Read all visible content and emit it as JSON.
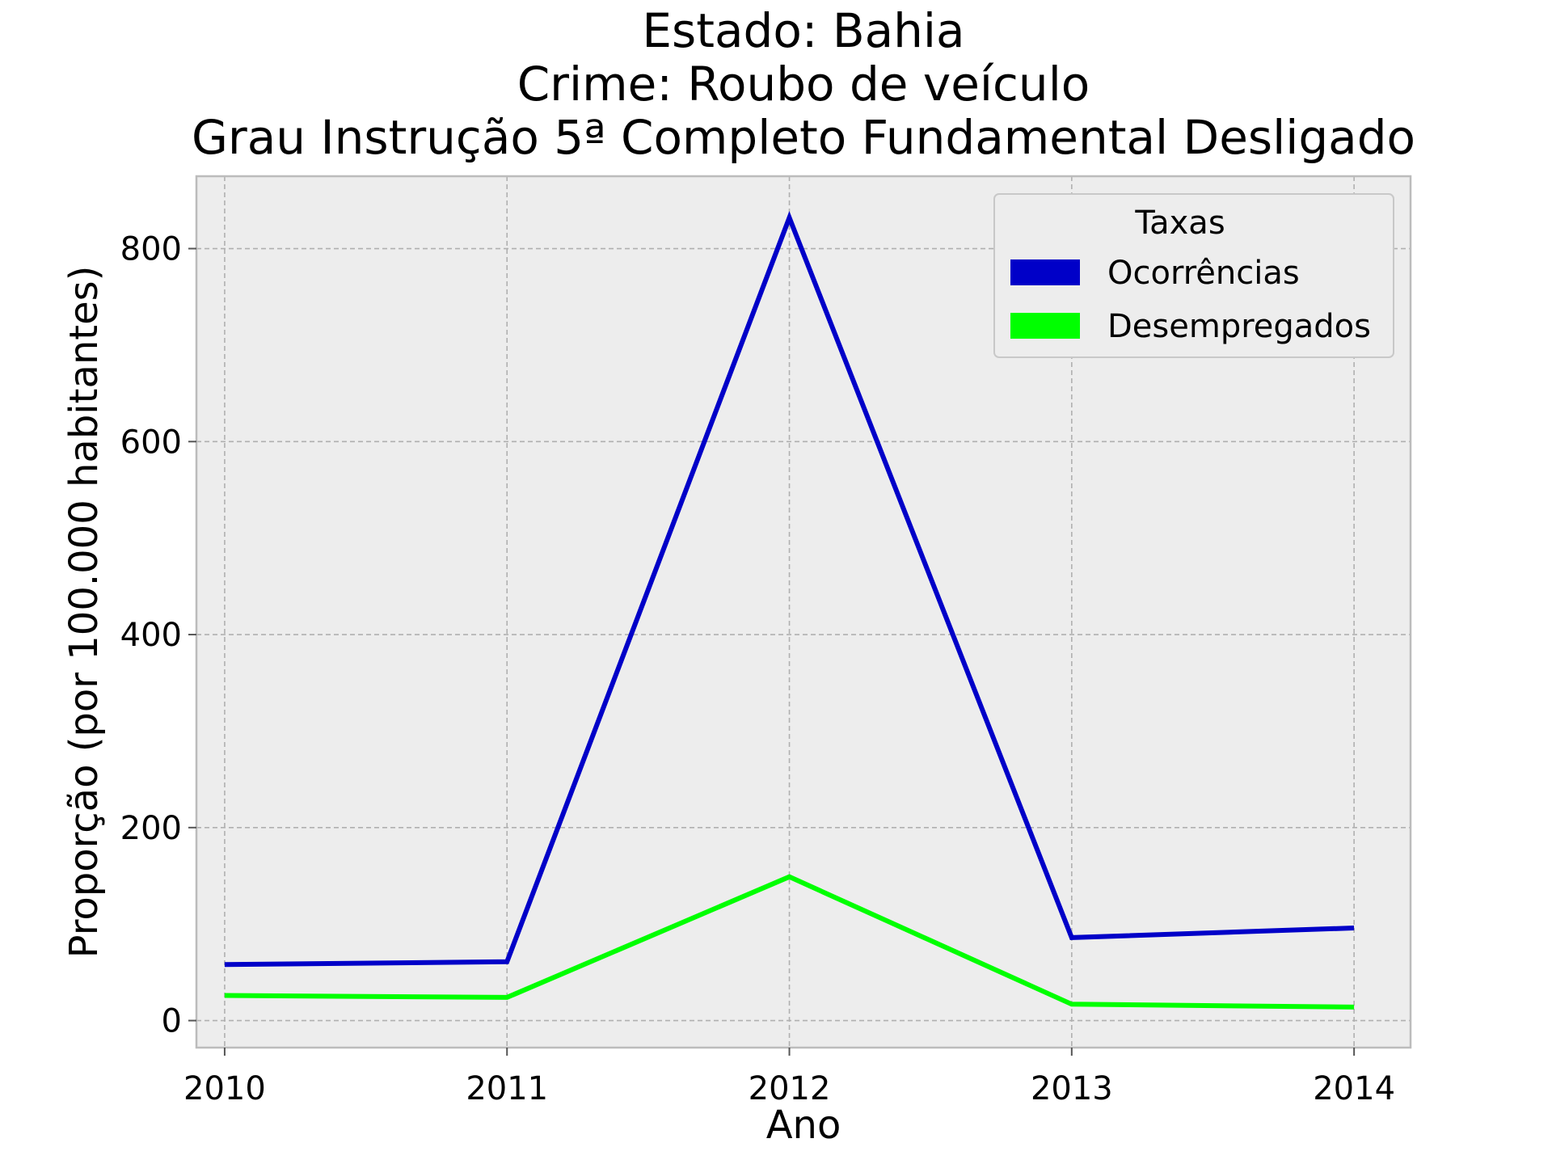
{
  "chart_data": {
    "type": "line",
    "title_lines": [
      "Estado: Bahia",
      "Crime: Roubo de veículo",
      "Grau Instrução  5ª Completo Fundamental   Desligado"
    ],
    "xlabel": "Ano",
    "ylabel": "Proporção (por 100.000 habitantes)",
    "x": [
      2010,
      2011,
      2012,
      2013,
      2014
    ],
    "x_tick_labels": [
      "2010",
      "2011",
      "2012",
      "2013",
      "2014"
    ],
    "y_ticks": [
      0,
      200,
      400,
      600,
      800
    ],
    "y_tick_labels": [
      "0",
      "200",
      "400",
      "600",
      "800"
    ],
    "xlim": [
      2009.9,
      2014.2
    ],
    "ylim": [
      -28,
      875
    ],
    "grid": true,
    "legend": {
      "title": "Taxas",
      "placement": "top-right"
    },
    "series": [
      {
        "name": "Ocorrências",
        "color": "#0000c8",
        "values": [
          58,
          61,
          832,
          86,
          96
        ]
      },
      {
        "name": "Desempregados",
        "color": "#00ff00",
        "values": [
          26,
          24,
          149,
          17,
          14
        ]
      }
    ],
    "colors": {
      "plot_background": "#ededed",
      "frame": "#bcbcbc"
    }
  }
}
